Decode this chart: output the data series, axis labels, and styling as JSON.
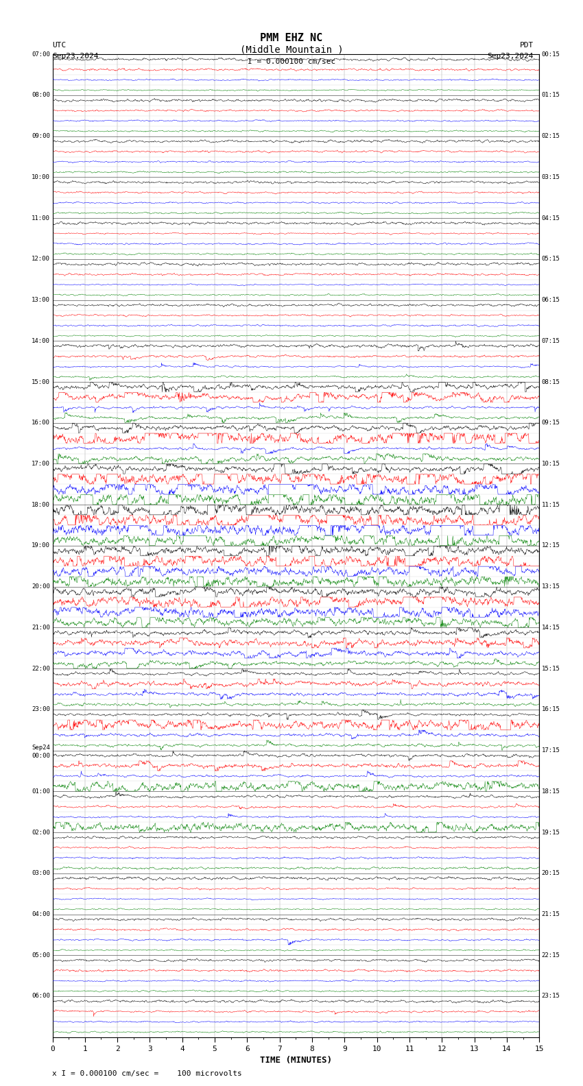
{
  "title_line1": "PMM EHZ NC",
  "title_line2": "(Middle Mountain )",
  "scale_label": "I = 0.000100 cm/sec",
  "utc_label": "UTC",
  "pdt_label": "PDT",
  "date_left": "Sep23,2024",
  "date_right": "Sep23,2024",
  "bottom_label": "x I = 0.000100 cm/sec =    100 microvolts",
  "xlabel": "TIME (MINUTES)",
  "bg_color": "#ffffff",
  "trace_colors": [
    "black",
    "red",
    "blue",
    "green"
  ],
  "left_times_utc": [
    "07:00",
    "08:00",
    "09:00",
    "10:00",
    "11:00",
    "12:00",
    "13:00",
    "14:00",
    "15:00",
    "16:00",
    "17:00",
    "18:00",
    "19:00",
    "20:00",
    "21:00",
    "22:00",
    "23:00",
    "Sep24\n00:00",
    "01:00",
    "02:00",
    "03:00",
    "04:00",
    "05:00",
    "06:00"
  ],
  "right_times_pdt": [
    "00:15",
    "01:15",
    "02:15",
    "03:15",
    "04:15",
    "05:15",
    "06:15",
    "07:15",
    "08:15",
    "09:15",
    "10:15",
    "11:15",
    "12:15",
    "13:15",
    "14:15",
    "15:15",
    "16:15",
    "17:15",
    "18:15",
    "19:15",
    "20:15",
    "21:15",
    "22:15",
    "23:15"
  ],
  "n_hour_rows": 24,
  "n_channel_rows": 4,
  "minutes_per_row": 15,
  "figsize": [
    8.5,
    15.84
  ],
  "dpi": 100,
  "font_family": "monospace",
  "font_size_title": 11,
  "font_size_labels": 8,
  "font_size_axis": 8
}
